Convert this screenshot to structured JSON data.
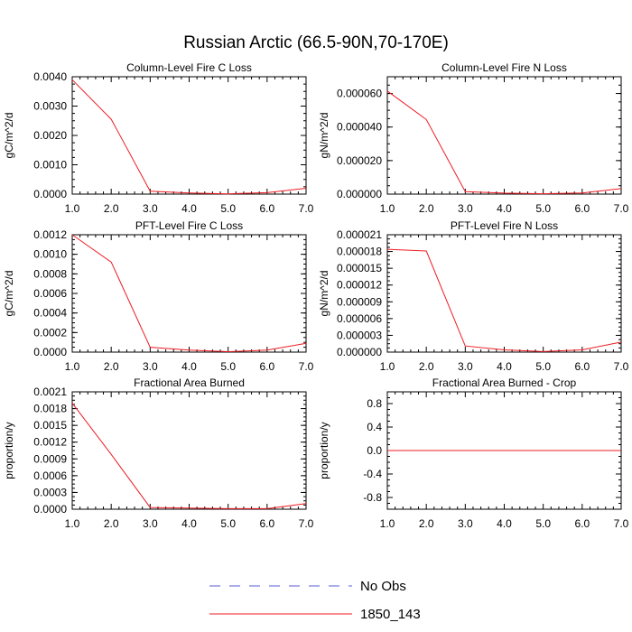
{
  "figure": {
    "title": "Russian Arctic (66.5-90N,70-170E)"
  },
  "legend": [
    {
      "label": "No Obs",
      "color": "#5a5fd6",
      "style": "dashed"
    },
    {
      "label": "1850_143",
      "color": "#ee1c24",
      "style": "solid"
    }
  ],
  "chart_data": [
    {
      "type": "line",
      "title": "Column-Level Fire C Loss",
      "ylabel": "gC/m^2/d",
      "xlabel": "",
      "xlim": [
        1,
        7
      ],
      "ylim": [
        0,
        0.004
      ],
      "xticks": [
        "1.0",
        "2.0",
        "3.0",
        "4.0",
        "5.0",
        "6.0",
        "7.0"
      ],
      "yticks": [
        {
          "value": 0,
          "label": "0.0000"
        },
        {
          "value": 0.001,
          "label": "0.0010"
        },
        {
          "value": 0.002,
          "label": "0.0020"
        },
        {
          "value": 0.003,
          "label": "0.0030"
        },
        {
          "value": 0.004,
          "label": "0.0040"
        }
      ],
      "series": [
        {
          "name": "1850_143",
          "x": [
            1,
            2,
            3,
            4,
            5,
            6,
            7
          ],
          "y": [
            0.0039,
            0.00255,
            0.0001,
            4e-05,
            1e-05,
            5e-05,
            0.0002
          ]
        }
      ]
    },
    {
      "type": "line",
      "title": "Column-Level Fire N Loss",
      "ylabel": "gN/m^2/d",
      "xlabel": "",
      "xlim": [
        1,
        7
      ],
      "ylim": [
        0,
        7e-05
      ],
      "xticks": [
        "1.0",
        "2.0",
        "3.0",
        "4.0",
        "5.0",
        "6.0",
        "7.0"
      ],
      "yticks": [
        {
          "value": 0,
          "label": "0.000000"
        },
        {
          "value": 2e-05,
          "label": "0.000020"
        },
        {
          "value": 4e-05,
          "label": "0.000040"
        },
        {
          "value": 6e-05,
          "label": "0.000060"
        }
      ],
      "series": [
        {
          "name": "1850_143",
          "x": [
            1,
            2,
            3,
            4,
            5,
            6,
            7
          ],
          "y": [
            6.15e-05,
            4.45e-05,
            1.5e-06,
            6e-07,
            2e-07,
            7e-07,
            3.3e-06
          ]
        }
      ]
    },
    {
      "type": "line",
      "title": "PFT-Level Fire C Loss",
      "ylabel": "gC/m^2/d",
      "xlabel": "",
      "xlim": [
        1,
        7
      ],
      "ylim": [
        0,
        0.0012
      ],
      "xticks": [
        "1.0",
        "2.0",
        "3.0",
        "4.0",
        "5.0",
        "6.0",
        "7.0"
      ],
      "yticks": [
        {
          "value": 0,
          "label": "0.0000"
        },
        {
          "value": 0.0002,
          "label": "0.0002"
        },
        {
          "value": 0.0004,
          "label": "0.0004"
        },
        {
          "value": 0.0006,
          "label": "0.0006"
        },
        {
          "value": 0.0008,
          "label": "0.0008"
        },
        {
          "value": 0.001,
          "label": "0.0010"
        },
        {
          "value": 0.0012,
          "label": "0.0012"
        }
      ],
      "series": [
        {
          "name": "1850_143",
          "x": [
            1,
            2,
            3,
            4,
            5,
            6,
            7
          ],
          "y": [
            0.0012,
            0.00092,
            5e-05,
            2e-05,
            5e-06,
            2e-05,
            9e-05
          ]
        }
      ]
    },
    {
      "type": "line",
      "title": "PFT-Level Fire N Loss",
      "ylabel": "gN/m^2/d",
      "xlabel": "",
      "xlim": [
        1,
        7
      ],
      "ylim": [
        0,
        2.1e-05
      ],
      "xticks": [
        "1.0",
        "2.0",
        "3.0",
        "4.0",
        "5.0",
        "6.0",
        "7.0"
      ],
      "yticks": [
        {
          "value": 0,
          "label": "0.000000"
        },
        {
          "value": 3e-06,
          "label": "0.000003"
        },
        {
          "value": 6e-06,
          "label": "0.000006"
        },
        {
          "value": 9e-06,
          "label": "0.000009"
        },
        {
          "value": 1.2e-05,
          "label": "0.000012"
        },
        {
          "value": 1.5e-05,
          "label": "0.000015"
        },
        {
          "value": 1.8e-05,
          "label": "0.000018"
        },
        {
          "value": 2.1e-05,
          "label": "0.000021"
        }
      ],
      "series": [
        {
          "name": "1850_143",
          "x": [
            1,
            2,
            3,
            4,
            5,
            6,
            7
          ],
          "y": [
            1.84e-05,
            1.81e-05,
            1.1e-06,
            4e-07,
            1e-07,
            4e-07,
            1.8e-06
          ]
        }
      ]
    },
    {
      "type": "line",
      "title": "Fractional Area Burned",
      "ylabel": "proportion/y",
      "xlabel": "",
      "xlim": [
        1,
        7
      ],
      "ylim": [
        0,
        0.0021
      ],
      "xticks": [
        "1.0",
        "2.0",
        "3.0",
        "4.0",
        "5.0",
        "6.0",
        "7.0"
      ],
      "yticks": [
        {
          "value": 0,
          "label": "0.0000"
        },
        {
          "value": 0.0003,
          "label": "0.0003"
        },
        {
          "value": 0.0006,
          "label": "0.0006"
        },
        {
          "value": 0.0009,
          "label": "0.0009"
        },
        {
          "value": 0.0012,
          "label": "0.0012"
        },
        {
          "value": 0.0015,
          "label": "0.0015"
        },
        {
          "value": 0.0018,
          "label": "0.0018"
        },
        {
          "value": 0.0021,
          "label": "0.0021"
        }
      ],
      "series": [
        {
          "name": "1850_143",
          "x": [
            1,
            2,
            3,
            4,
            5,
            6,
            7
          ],
          "y": [
            0.0019,
            0.00098,
            3e-05,
            2e-05,
            1e-05,
            1e-05,
            0.0001
          ]
        }
      ]
    },
    {
      "type": "line",
      "title": "Fractional Area Burned - Crop",
      "ylabel": "proportion/y",
      "xlabel": "",
      "xlim": [
        1,
        7
      ],
      "ylim": [
        -1,
        1
      ],
      "xticks": [
        "1.0",
        "2.0",
        "3.0",
        "4.0",
        "5.0",
        "6.0",
        "7.0"
      ],
      "yticks": [
        {
          "value": -0.8,
          "label": "-0.8"
        },
        {
          "value": -0.4,
          "label": "-0.4"
        },
        {
          "value": 0,
          "label": "0.0"
        },
        {
          "value": 0.4,
          "label": "0.4"
        },
        {
          "value": 0.8,
          "label": "0.8"
        }
      ],
      "series": [
        {
          "name": "1850_143",
          "x": [
            1,
            2,
            3,
            4,
            5,
            6,
            7
          ],
          "y": [
            0,
            0,
            0,
            0,
            0,
            0,
            0
          ]
        }
      ]
    }
  ]
}
